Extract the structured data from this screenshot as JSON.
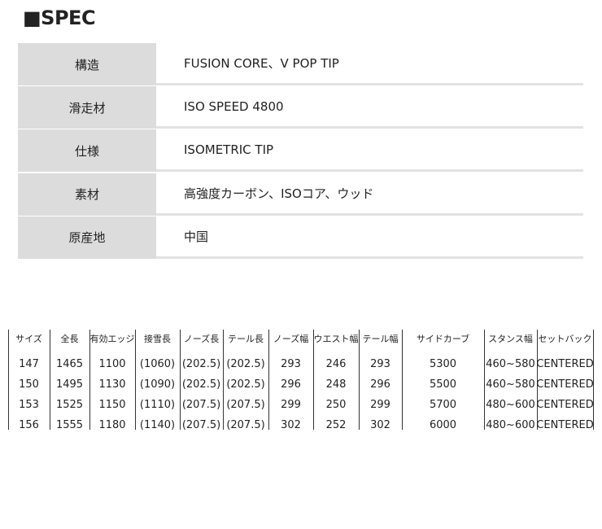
{
  "title": "■SPEC",
  "spec": {
    "rows": [
      [
        "構造",
        "FUSION CORE、V POP TIP"
      ],
      [
        "滑走材",
        "ISO SPEED 4800"
      ],
      [
        "仕様",
        "ISOMETRIC TIP"
      ],
      [
        "素材",
        "高強度カーボン、ISOコア、ウッド"
      ],
      [
        "原産地",
        "中国"
      ]
    ]
  },
  "size_table": {
    "header": [
      "サイズ",
      "全長",
      "有効エッジ",
      "接雪長",
      "ノーズ長",
      "テール長",
      "ノーズ幅",
      "ウエスト幅",
      "テール幅",
      "サイドカーブ",
      "スタンス幅",
      "セットバック"
    ],
    "rows": [
      [
        "147",
        "1465",
        "1100",
        "(1060)",
        "(202.5)",
        "(202.5)",
        "293",
        "246",
        "293",
        "5300",
        "460~580",
        "CENTERED"
      ],
      [
        "150",
        "1495",
        "1130",
        "(1090)",
        "(202.5)",
        "(202.5)",
        "296",
        "248",
        "296",
        "5500",
        "460~580",
        "CENTERED"
      ],
      [
        "153",
        "1525",
        "1150",
        "(1110)",
        "(207.5)",
        "(207.5)",
        "299",
        "250",
        "299",
        "5700",
        "480~600",
        "CENTERED"
      ],
      [
        "156",
        "1555",
        "1180",
        "(1140)",
        "(207.5)",
        "(207.5)",
        "302",
        "252",
        "302",
        "6000",
        "480~600",
        "CENTERED"
      ]
    ]
  }
}
